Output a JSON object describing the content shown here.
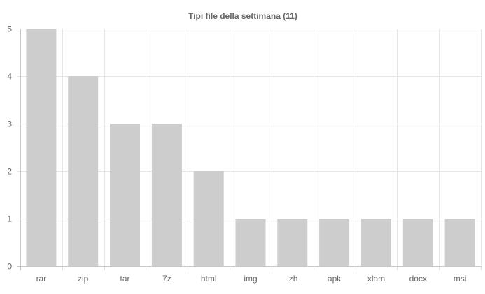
{
  "chart_data": {
    "type": "bar",
    "title": "Tipi file della settimana (11)",
    "xlabel": "",
    "ylabel": "",
    "categories": [
      "rar",
      "zip",
      "tar",
      "7z",
      "html",
      "img",
      "lzh",
      "apk",
      "xlam",
      "docx",
      "msi"
    ],
    "values": [
      5,
      4,
      3,
      3,
      2,
      1,
      1,
      1,
      1,
      1,
      1
    ],
    "ylim": [
      0,
      5
    ],
    "yticks": [
      "0",
      "1",
      "2",
      "3",
      "4",
      "5"
    ],
    "grid": true,
    "legend": "none",
    "bar_color": "#cdcdce",
    "grid_color": "#e5e5e5",
    "text_color": "#666666"
  }
}
